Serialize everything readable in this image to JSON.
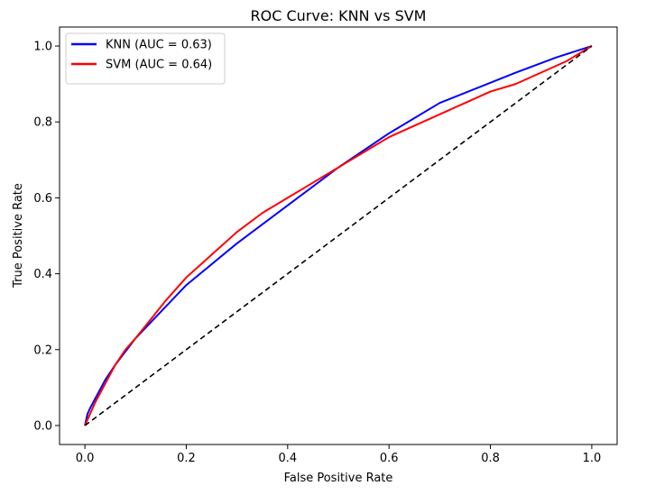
{
  "chart_data": {
    "type": "line",
    "title": "ROC Curve: KNN vs SVM",
    "xlabel": "False Positive Rate",
    "ylabel": "True Positive Rate",
    "xlim": [
      -0.05,
      1.05
    ],
    "ylim": [
      -0.05,
      1.05
    ],
    "xticks": [
      "0.0",
      "0.2",
      "0.4",
      "0.6",
      "0.8",
      "1.0"
    ],
    "yticks": [
      "0.0",
      "0.2",
      "0.4",
      "0.6",
      "0.8",
      "1.0"
    ],
    "grid": false,
    "legend_position": "upper-left",
    "series": [
      {
        "name": "KNN (AUC = 0.63)",
        "color": "#0000ff",
        "style": "solid",
        "x": [
          0.0,
          0.005,
          0.01,
          0.02,
          0.04,
          0.06,
          0.1,
          0.2,
          0.3,
          0.4,
          0.5,
          0.6,
          0.7,
          0.85,
          0.93,
          1.0
        ],
        "y": [
          0.0,
          0.03,
          0.045,
          0.07,
          0.12,
          0.16,
          0.23,
          0.37,
          0.48,
          0.58,
          0.68,
          0.77,
          0.85,
          0.93,
          0.97,
          1.0
        ]
      },
      {
        "name": "SVM (AUC = 0.64)",
        "color": "#ff0000",
        "style": "solid",
        "x": [
          0.0,
          0.01,
          0.02,
          0.04,
          0.06,
          0.08,
          0.1,
          0.13,
          0.16,
          0.2,
          0.25,
          0.3,
          0.35,
          0.4,
          0.45,
          0.5,
          0.55,
          0.6,
          0.65,
          0.7,
          0.75,
          0.8,
          0.85,
          0.9,
          0.95,
          1.0
        ],
        "y": [
          0.0,
          0.03,
          0.06,
          0.11,
          0.16,
          0.2,
          0.23,
          0.28,
          0.33,
          0.39,
          0.45,
          0.51,
          0.56,
          0.6,
          0.64,
          0.68,
          0.72,
          0.76,
          0.79,
          0.82,
          0.85,
          0.88,
          0.9,
          0.93,
          0.96,
          1.0
        ]
      },
      {
        "color": "#000000",
        "style": "dashed",
        "x": [
          0.0,
          1.0
        ],
        "y": [
          0.0,
          1.0
        ]
      }
    ]
  }
}
